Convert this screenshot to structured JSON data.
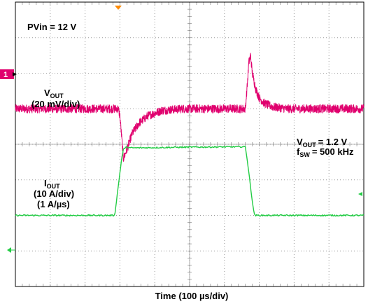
{
  "chart_data": [
    {
      "type": "line",
      "title": "",
      "annotations": {
        "input_voltage": "PVin = 12 V",
        "output_voltage": "= 1.2 V",
        "switching_frequency": "= 500 kHz"
      },
      "xlabel": "Time (100 µs/div)",
      "x_unit": "div",
      "x_divisions": 10,
      "y_divisions": 8,
      "grid": true,
      "channel_markers": {
        "ch1": "1",
        "trigger": "orange triangle at top",
        "ch2": "green arrow"
      },
      "series": [
        {
          "name": "VOUT (20 mV/div)",
          "label_main": "V",
          "label_sub": "OUT",
          "label_scale": "(20 mV/div)",
          "color": "#e0006e",
          "offset_div": 1.0,
          "noise_div": 0.12,
          "x": [
            0,
            2.95,
            3.0,
            3.05,
            3.1,
            3.2,
            3.35,
            3.55,
            3.8,
            4.2,
            4.8,
            5.6,
            6.6,
            6.65,
            6.7,
            6.75,
            6.8,
            6.9,
            7.0,
            7.15,
            7.4,
            7.8,
            10
          ],
          "y": [
            0,
            0,
            -0.2,
            -0.8,
            -1.4,
            -1.15,
            -0.7,
            -0.4,
            -0.2,
            -0.05,
            0,
            0,
            0,
            0.6,
            1.3,
            1.5,
            1.0,
            0.55,
            0.3,
            0.15,
            0.05,
            0,
            0
          ]
        },
        {
          "name": "IOUT (10 A/div)",
          "label_main": "I",
          "label_sub": "OUT",
          "label_scale": "(10 A/div)",
          "label_slew": "(1 A/µs)",
          "color": "#22cc44",
          "offset_div": -2.0,
          "noise_div": 0.02,
          "x": [
            0,
            2.85,
            2.9,
            2.95,
            3.0,
            3.05,
            3.1,
            3.15,
            3.2,
            3.3,
            3.5,
            5.0,
            6.5,
            6.6,
            6.65,
            6.7,
            6.75,
            6.8,
            6.85,
            6.9,
            7.0,
            10
          ],
          "y": [
            0,
            0,
            0.4,
            0.8,
            1.2,
            1.6,
            1.85,
            1.9,
            1.92,
            1.9,
            1.9,
            1.92,
            1.93,
            1.93,
            1.6,
            1.2,
            0.8,
            0.4,
            0.05,
            0,
            0,
            0
          ]
        }
      ]
    }
  ]
}
